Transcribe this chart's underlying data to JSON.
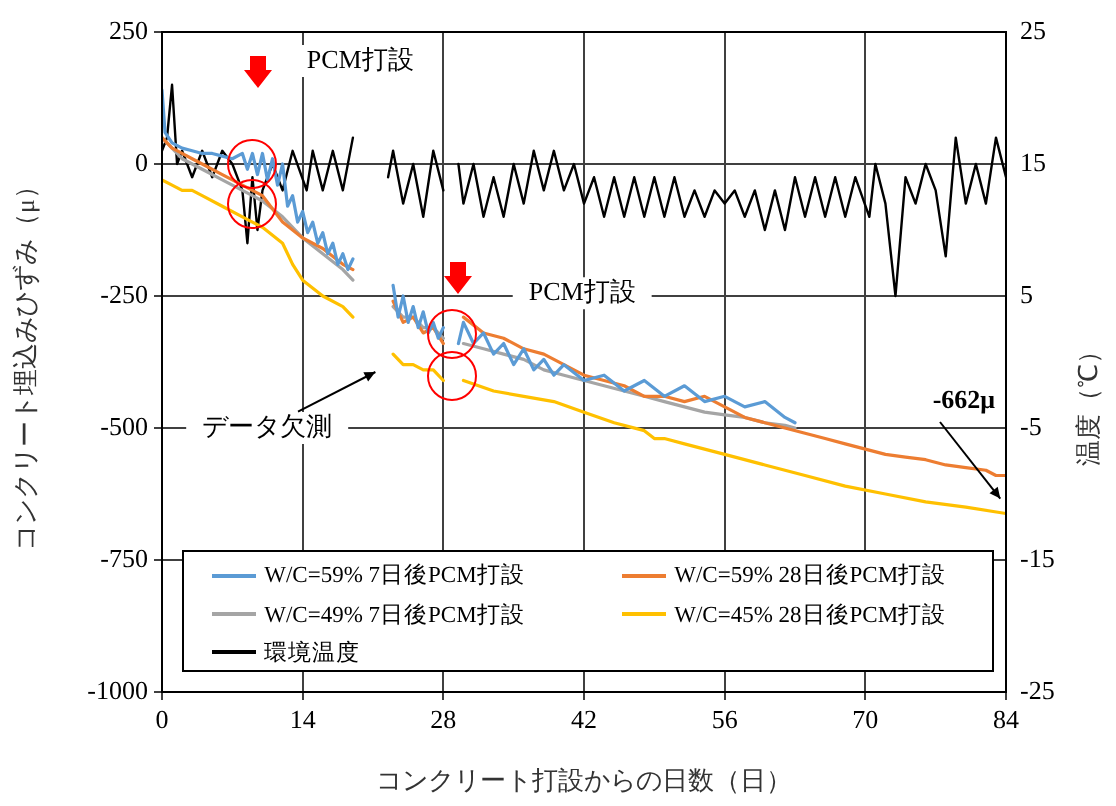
{
  "chart_data": {
    "type": "line",
    "xlabel": "コンクリート打設からの日数（日）",
    "ylabel": "コンクリート埋込みひずみ（μ）",
    "y2label": "温度（℃）",
    "xlim": [
      0,
      84
    ],
    "xticks": [
      0,
      14,
      28,
      42,
      56,
      70,
      84
    ],
    "ylim": [
      -1000,
      250
    ],
    "yticks": [
      -1000,
      -750,
      -500,
      -250,
      0,
      250
    ],
    "y2lim": [
      -25,
      25
    ],
    "y2ticks": [
      -25,
      -15,
      -5,
      5,
      15,
      25
    ],
    "grid": true,
    "legend": "bottom left",
    "marker": "none",
    "line_style": "solid",
    "annotations": [
      "PCM打設",
      "PCM打設",
      "データ欠測",
      "-662μ"
    ],
    "series": [
      {
        "name": "W/C=59% 7日後PCM打設",
        "color": "#5b9bd5",
        "x": [
          0,
          0.3,
          1,
          2,
          3,
          4,
          5,
          6,
          7,
          8,
          8.5,
          9,
          9.5,
          10,
          10.5,
          11,
          11.5,
          12,
          12.5,
          13,
          13.5,
          14,
          14.5,
          15,
          15.5,
          16,
          16.5,
          17,
          17.5,
          18,
          18.5,
          19,
          21,
          23,
          23.5,
          24,
          24.5,
          25,
          25.5,
          26,
          26.5,
          27,
          27.5,
          28,
          28.8,
          29.5,
          30,
          31,
          32,
          33,
          34,
          35,
          36,
          37,
          38,
          39,
          40,
          42,
          44,
          46,
          48,
          50,
          52,
          54,
          56,
          58,
          60,
          62,
          63
        ],
        "values": [
          140,
          60,
          40,
          30,
          25,
          20,
          20,
          15,
          10,
          20,
          -10,
          20,
          -20,
          20,
          -30,
          10,
          -40,
          0,
          -80,
          -60,
          -110,
          -90,
          -130,
          -110,
          -150,
          -130,
          -170,
          -150,
          -190,
          -170,
          -200,
          -180,
          null,
          -230,
          -290,
          -250,
          -300,
          -270,
          -310,
          -280,
          -320,
          -300,
          -330,
          -310,
          null,
          -340,
          -300,
          -340,
          -320,
          -360,
          -340,
          -380,
          -350,
          -390,
          -370,
          -400,
          -380,
          -410,
          -400,
          -430,
          -410,
          -440,
          -420,
          -450,
          -440,
          -460,
          -450,
          -480,
          -490
        ]
      },
      {
        "name": "W/C=59% 28日後PCM打設",
        "color": "#ed7d31",
        "x": [
          0,
          1,
          2,
          3,
          4,
          6,
          8,
          10,
          12,
          14,
          16,
          18,
          19,
          21,
          23,
          24,
          25,
          26,
          27,
          28,
          29,
          30,
          32,
          34,
          36,
          38,
          40,
          42,
          44,
          46,
          48,
          50,
          52,
          54,
          56,
          58,
          60,
          62,
          64,
          66,
          68,
          70,
          72,
          74,
          76,
          78,
          80,
          82,
          83,
          84
        ],
        "values": [
          50,
          30,
          20,
          10,
          0,
          -20,
          -40,
          -60,
          -110,
          -140,
          -160,
          -190,
          -200,
          null,
          -260,
          -300,
          -290,
          -320,
          -310,
          -340,
          null,
          -290,
          -320,
          -330,
          -350,
          -360,
          -380,
          -400,
          -410,
          -420,
          -440,
          -440,
          -450,
          -440,
          -460,
          -480,
          -490,
          -500,
          -510,
          -520,
          -530,
          -540,
          -550,
          -555,
          -560,
          -570,
          -575,
          -580,
          -590,
          -590
        ]
      },
      {
        "name": "W/C=49% 7日後PCM打設",
        "color": "#a5a5a5",
        "x": [
          0,
          1,
          2,
          3,
          4,
          6,
          8,
          10,
          12,
          14,
          16,
          18,
          19,
          21,
          23,
          24,
          25,
          26,
          27,
          28,
          29,
          30,
          32,
          34,
          36,
          38,
          40,
          42,
          44,
          46,
          48,
          50,
          52,
          54,
          56,
          58,
          60,
          62,
          63
        ],
        "values": [
          50,
          30,
          10,
          0,
          -10,
          -30,
          -50,
          -70,
          -100,
          -140,
          -170,
          -200,
          -220,
          null,
          -270,
          -290,
          -290,
          -310,
          -310,
          -330,
          null,
          -340,
          -350,
          -360,
          -370,
          -390,
          -400,
          -410,
          -420,
          -430,
          -440,
          -450,
          -460,
          -470,
          -475,
          -480,
          -490,
          -495,
          -500
        ]
      },
      {
        "name": "W/C=45% 28日後PCM打設",
        "color": "#ffc000",
        "x": [
          0,
          1,
          2,
          3,
          4,
          6,
          8,
          10,
          12,
          13,
          14,
          16,
          18,
          19,
          21,
          23,
          24,
          25,
          26,
          27,
          28,
          29,
          30,
          33,
          36,
          39,
          42,
          45,
          48,
          49,
          50,
          52,
          54,
          56,
          60,
          64,
          68,
          72,
          76,
          80,
          84
        ],
        "values": [
          -30,
          -40,
          -50,
          -50,
          -60,
          -80,
          -100,
          -120,
          -150,
          -190,
          -220,
          -250,
          -270,
          -290,
          null,
          -360,
          -380,
          -380,
          -390,
          -390,
          -410,
          null,
          -410,
          -430,
          -440,
          -450,
          -470,
          -490,
          -505,
          -520,
          -520,
          -530,
          -540,
          -550,
          -570,
          -590,
          -610,
          -625,
          -640,
          -650,
          -662
        ]
      },
      {
        "name": "環境温度",
        "color": "#000000",
        "axis": "y2",
        "x": [
          0,
          0.5,
          1,
          1.5,
          2,
          3,
          4,
          5,
          6,
          7,
          8,
          8.5,
          9,
          9.5,
          10,
          11,
          12,
          13,
          14.4,
          15,
          16,
          17,
          18,
          19,
          21,
          22.5,
          23,
          24,
          25,
          26,
          27,
          28,
          28.7,
          29.5,
          30,
          31,
          32,
          33,
          34,
          35,
          36,
          37,
          38,
          39,
          40,
          41,
          42,
          43,
          44,
          45,
          46,
          47,
          48,
          49,
          50,
          51,
          52,
          53,
          54,
          55,
          56,
          57,
          58,
          59,
          60,
          61,
          62,
          63,
          64,
          65,
          66,
          67,
          68,
          69,
          70.4,
          71,
          72,
          73,
          74,
          75,
          76,
          77,
          78,
          79,
          80,
          81,
          82,
          83,
          84
        ],
        "values": [
          16,
          17,
          21,
          15,
          16,
          14,
          16,
          14,
          16,
          15,
          13,
          9,
          14,
          10,
          13,
          15,
          13,
          16,
          13,
          16,
          13,
          16,
          13,
          17,
          null,
          14,
          16,
          12,
          15,
          11,
          16,
          13,
          null,
          15,
          12,
          15,
          11,
          14,
          11,
          15,
          12,
          16,
          13,
          16,
          13,
          15,
          12,
          14,
          11,
          14,
          11,
          14,
          11,
          14,
          11,
          14,
          11,
          13,
          11,
          13,
          12,
          13,
          11,
          13,
          10,
          13,
          10,
          14,
          11,
          14,
          11,
          14,
          11,
          14,
          11,
          15,
          12,
          5,
          14,
          12,
          15,
          13,
          8,
          17,
          12,
          15,
          12,
          17,
          14
        ]
      }
    ]
  }
}
